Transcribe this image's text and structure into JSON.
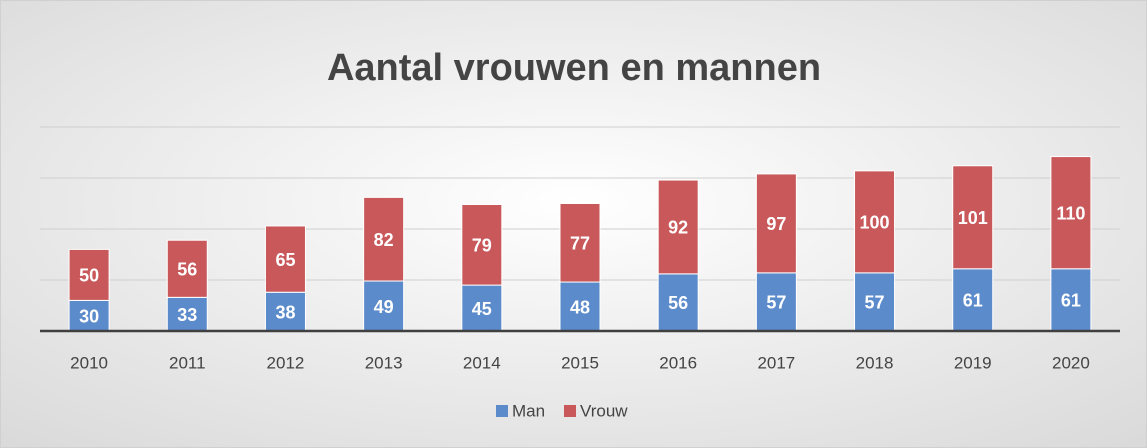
{
  "chart_data": {
    "type": "stacked_bar",
    "title": "Aantal vrouwen en mannen",
    "categories": [
      "2010",
      "2011",
      "2012",
      "2013",
      "2014",
      "2015",
      "2016",
      "2017",
      "2018",
      "2019",
      "2020"
    ],
    "series": [
      {
        "name": "Man",
        "color": "#5b8bcb",
        "values": [
          30,
          33,
          38,
          49,
          45,
          48,
          56,
          57,
          57,
          61,
          61
        ]
      },
      {
        "name": "Vrouw",
        "color": "#c9585a",
        "values": [
          50,
          56,
          65,
          82,
          79,
          77,
          92,
          97,
          100,
          101,
          110
        ]
      }
    ],
    "ylim": [
      0,
      200
    ],
    "yticks": [
      0,
      50,
      100,
      150,
      200
    ],
    "grid": true,
    "legend": "bottom"
  }
}
